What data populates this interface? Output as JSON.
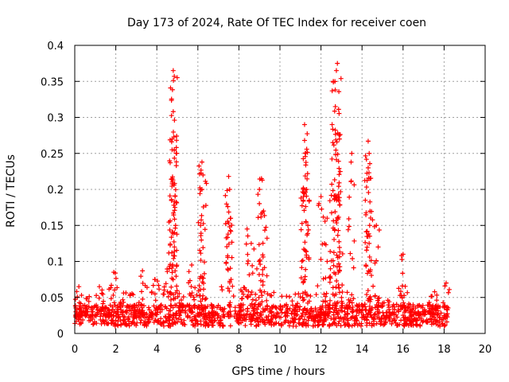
{
  "chart_data": {
    "type": "scatter",
    "title": "Day 173 of 2024, Rate Of TEC Index for receiver coen",
    "xlabel": "GPS time / hours",
    "ylabel": "ROTI / TECUs",
    "xlim": [
      0,
      20
    ],
    "ylim": [
      0,
      0.4
    ],
    "x_ticks": [
      "0",
      "2",
      "4",
      "6",
      "8",
      "10",
      "12",
      "14",
      "16",
      "18",
      "20"
    ],
    "y_ticks": [
      "0",
      "0.05",
      "0.1",
      "0.15",
      "0.2",
      "0.25",
      "0.3",
      "0.35",
      "0.4"
    ],
    "grid": true,
    "marker": "+",
    "color": "#ff0000",
    "x_range_of_data": [
      0,
      18.2
    ],
    "baseline_band": [
      0.01,
      0.04
    ],
    "spikes": [
      {
        "x": 0.2,
        "y": 0.065
      },
      {
        "x": 1.2,
        "y": 0.065
      },
      {
        "x": 1.9,
        "y": 0.085
      },
      {
        "x": 3.3,
        "y": 0.087
      },
      {
        "x": 3.9,
        "y": 0.075
      },
      {
        "x": 4.6,
        "y": 0.09
      },
      {
        "x": 4.8,
        "y": 0.365
      },
      {
        "x": 4.85,
        "y": 0.357
      },
      {
        "x": 4.8,
        "y": 0.308
      },
      {
        "x": 4.75,
        "y": 0.27
      },
      {
        "x": 4.75,
        "y": 0.215
      },
      {
        "x": 5.7,
        "y": 0.095
      },
      {
        "x": 6.2,
        "y": 0.238
      },
      {
        "x": 6.25,
        "y": 0.22
      },
      {
        "x": 6.2,
        "y": 0.2
      },
      {
        "x": 7.5,
        "y": 0.218
      },
      {
        "x": 7.55,
        "y": 0.2
      },
      {
        "x": 7.6,
        "y": 0.16
      },
      {
        "x": 8.4,
        "y": 0.145
      },
      {
        "x": 8.6,
        "y": 0.125
      },
      {
        "x": 9.1,
        "y": 0.215
      },
      {
        "x": 9.0,
        "y": 0.2
      },
      {
        "x": 9.2,
        "y": 0.17
      },
      {
        "x": 11.2,
        "y": 0.29
      },
      {
        "x": 11.2,
        "y": 0.268
      },
      {
        "x": 11.25,
        "y": 0.25
      },
      {
        "x": 11.3,
        "y": 0.2
      },
      {
        "x": 12.0,
        "y": 0.19
      },
      {
        "x": 12.3,
        "y": 0.16
      },
      {
        "x": 12.6,
        "y": 0.35
      },
      {
        "x": 12.8,
        "y": 0.375
      },
      {
        "x": 12.75,
        "y": 0.365
      },
      {
        "x": 12.7,
        "y": 0.315
      },
      {
        "x": 12.9,
        "y": 0.27
      },
      {
        "x": 13.5,
        "y": 0.25
      },
      {
        "x": 14.3,
        "y": 0.267
      },
      {
        "x": 14.35,
        "y": 0.25
      },
      {
        "x": 14.3,
        "y": 0.23
      },
      {
        "x": 14.7,
        "y": 0.15
      },
      {
        "x": 16.0,
        "y": 0.11
      },
      {
        "x": 18.1,
        "y": 0.07
      }
    ]
  }
}
